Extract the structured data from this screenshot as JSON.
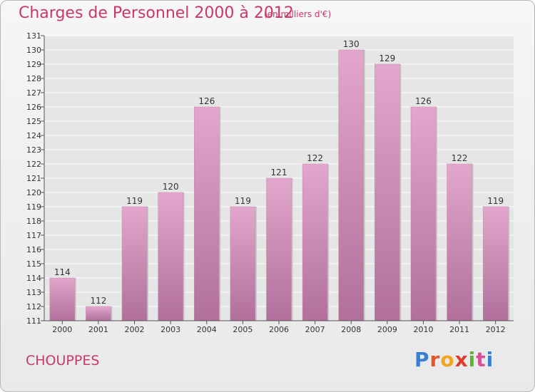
{
  "title": "Charges de Personnel 2000 à 2012",
  "subtitle": "(en milliers d'€)",
  "commune": "CHOUPPES",
  "logo": {
    "text": "Proxiti",
    "colors": [
      "#3a7fcf",
      "#e8552b",
      "#f2a51a",
      "#e33a2c",
      "#5cb531",
      "#d94f9a",
      "#3a7fcf"
    ]
  },
  "colors": {
    "bar_top": "#e3a6cc",
    "bar_bottom": "#b0709a",
    "grid": "#ffffff",
    "plot_bg": "#e6e6e6"
  },
  "chart_data": {
    "type": "bar",
    "title": "Charges de Personnel 2000 à 2012",
    "subtitle": "(en milliers d'€)",
    "categories": [
      "2000",
      "2001",
      "2002",
      "2003",
      "2004",
      "2005",
      "2006",
      "2007",
      "2008",
      "2009",
      "2010",
      "2011",
      "2012"
    ],
    "values": [
      114,
      112,
      119,
      120,
      126,
      119,
      121,
      122,
      130,
      129,
      126,
      122,
      119
    ],
    "ylim": [
      111,
      131
    ],
    "yticks": [
      "111",
      "112",
      "113",
      "114",
      "115",
      "116",
      "117",
      "118",
      "119",
      "120",
      "121",
      "122",
      "123",
      "124",
      "125",
      "126",
      "127",
      "128",
      "129",
      "130",
      "131"
    ],
    "grid": true
  }
}
